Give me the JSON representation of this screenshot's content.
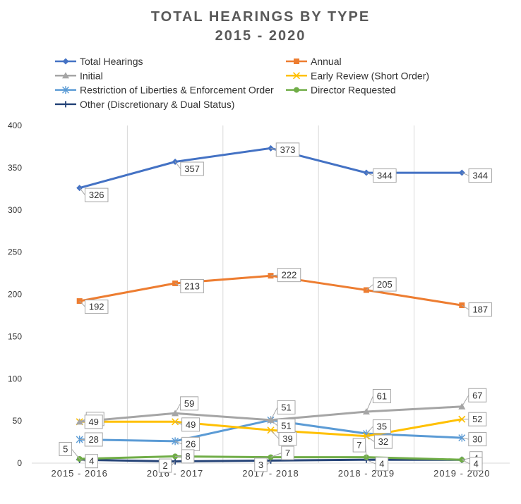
{
  "chart_data": {
    "type": "line",
    "title": "TOTAL HEARINGS BY TYPE",
    "subtitle": "2015 - 2020",
    "categories": [
      "2015 - 2016",
      "2016 - 2017",
      "2017 - 2018",
      "2018 - 2019",
      "2019 - 2020"
    ],
    "ylim": [
      0,
      400
    ],
    "yticks": [
      0,
      50,
      100,
      150,
      200,
      250,
      300,
      350,
      400
    ],
    "grid": "vertical",
    "legend_position": "top",
    "series": [
      {
        "name": "Total Hearings",
        "color": "#4472C4",
        "marker": "diamond",
        "values": [
          326,
          357,
          373,
          344,
          344
        ]
      },
      {
        "name": "Annual",
        "color": "#ED7D31",
        "marker": "square",
        "values": [
          192,
          213,
          222,
          205,
          187
        ]
      },
      {
        "name": "Initial",
        "color": "#A5A5A5",
        "marker": "triangle",
        "values": [
          49,
          59,
          51,
          61,
          67
        ]
      },
      {
        "name": "Early Review (Short Order)",
        "color": "#FFC000",
        "marker": "x",
        "values": [
          49,
          49,
          39,
          32,
          52
        ]
      },
      {
        "name": "Restriction of Liberties & Enforcement Order",
        "color": "#5B9BD5",
        "marker": "star",
        "values": [
          28,
          26,
          51,
          35,
          30
        ]
      },
      {
        "name": "Director Requested",
        "color": "#70AD47",
        "marker": "circle",
        "values": [
          5,
          8,
          7,
          7,
          4
        ]
      },
      {
        "name": "Other (Discretionary & Dual Status)",
        "color": "#264478",
        "marker": "plus",
        "values": [
          4,
          2,
          3,
          4,
          4
        ]
      }
    ]
  }
}
